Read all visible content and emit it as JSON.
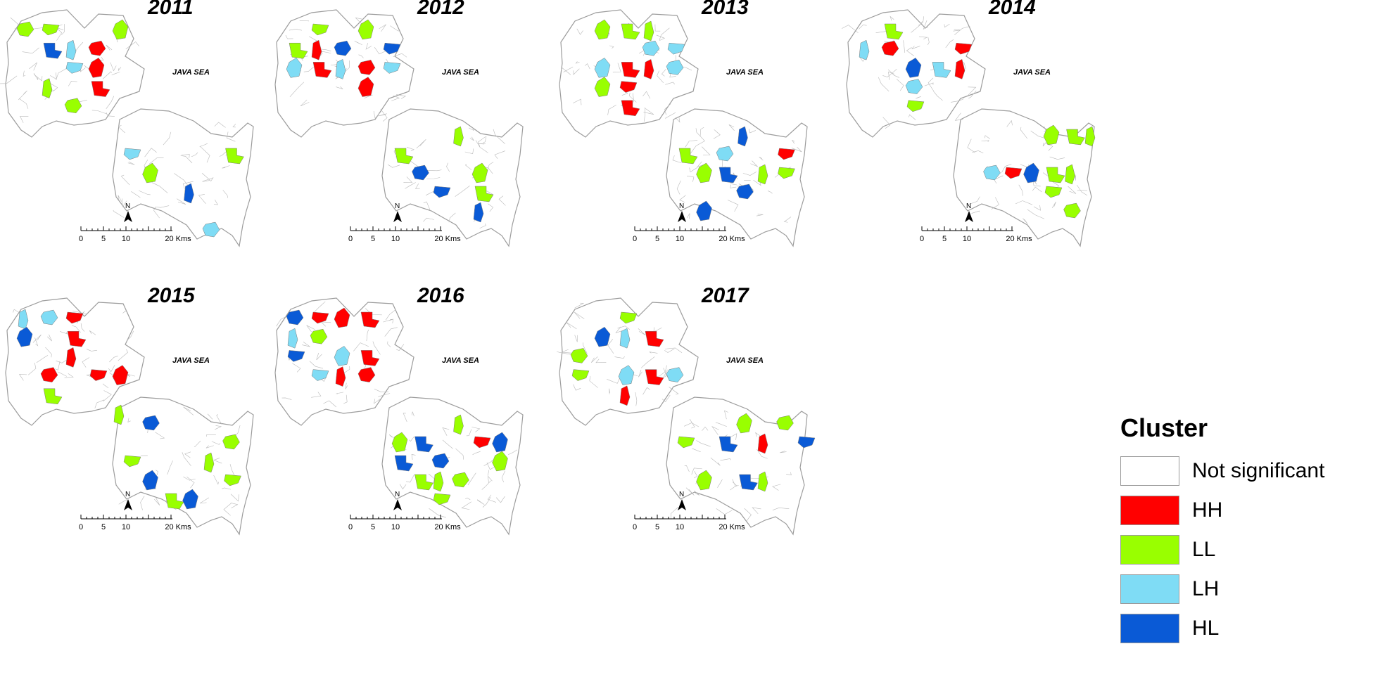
{
  "sea_label": "JAVA SEA",
  "north_label": "N",
  "scale": {
    "ticks": [
      "0",
      "5",
      "10",
      "20 Kms"
    ]
  },
  "colors": {
    "not_significant": "#ffffff",
    "HH": "#ff0000",
    "LL": "#99ff00",
    "LH": "#7fdcf5",
    "HL": "#0a5ad6",
    "boundary": "#b9b9b9"
  },
  "panels": [
    {
      "year": "2011",
      "clusters": [
        {
          "t": "LL",
          "s": [
            0,
            0
          ],
          "r": "NW"
        },
        {
          "t": "LL",
          "s": [
            1,
            0
          ],
          "r": "NW"
        },
        {
          "t": "LL",
          "s": [
            4,
            0
          ],
          "r": "NW"
        },
        {
          "t": "HL",
          "s": [
            1,
            1
          ],
          "r": "NW"
        },
        {
          "t": "LH",
          "s": [
            2,
            1
          ],
          "r": "NW"
        },
        {
          "t": "HH",
          "s": [
            3,
            1
          ],
          "r": "NW"
        },
        {
          "t": "LH",
          "s": [
            2,
            2
          ],
          "r": "NW"
        },
        {
          "t": "HH",
          "s": [
            3,
            2
          ],
          "r": "NW"
        },
        {
          "t": "HH",
          "s": [
            3,
            3
          ],
          "r": "NW"
        },
        {
          "t": "LL",
          "s": [
            1,
            3
          ],
          "r": "NW"
        },
        {
          "t": "LL",
          "s": [
            2,
            4
          ],
          "r": "NW"
        },
        {
          "t": "LH",
          "s": [
            0,
            1
          ],
          "r": "SE"
        },
        {
          "t": "LL",
          "s": [
            1,
            2
          ],
          "r": "SE"
        },
        {
          "t": "LL",
          "s": [
            5,
            1
          ],
          "r": "SE"
        },
        {
          "t": "HL",
          "s": [
            3,
            3
          ],
          "r": "SE"
        },
        {
          "t": "LH",
          "s": [
            4,
            5
          ],
          "r": "SE"
        }
      ]
    },
    {
      "year": "2012",
      "clusters": [
        {
          "t": "LL",
          "s": [
            1,
            0
          ],
          "r": "NW"
        },
        {
          "t": "LL",
          "s": [
            3,
            0
          ],
          "r": "NW"
        },
        {
          "t": "LL",
          "s": [
            0,
            1
          ],
          "r": "NW"
        },
        {
          "t": "HH",
          "s": [
            1,
            1
          ],
          "r": "NW"
        },
        {
          "t": "HL",
          "s": [
            2,
            1
          ],
          "r": "NW"
        },
        {
          "t": "HL",
          "s": [
            4,
            1
          ],
          "r": "NW"
        },
        {
          "t": "LH",
          "s": [
            0,
            2
          ],
          "r": "NW"
        },
        {
          "t": "HH",
          "s": [
            1,
            2
          ],
          "r": "NW"
        },
        {
          "t": "LH",
          "s": [
            2,
            2
          ],
          "r": "NW"
        },
        {
          "t": "HH",
          "s": [
            3,
            2
          ],
          "r": "NW"
        },
        {
          "t": "LH",
          "s": [
            4,
            2
          ],
          "r": "NW"
        },
        {
          "t": "HH",
          "s": [
            3,
            3
          ],
          "r": "NW"
        },
        {
          "t": "LL",
          "s": [
            0,
            1
          ],
          "r": "SE"
        },
        {
          "t": "LL",
          "s": [
            3,
            0
          ],
          "r": "SE"
        },
        {
          "t": "HL",
          "s": [
            1,
            2
          ],
          "r": "SE"
        },
        {
          "t": "HL",
          "s": [
            2,
            3
          ],
          "r": "SE"
        },
        {
          "t": "LL",
          "s": [
            4,
            2
          ],
          "r": "SE"
        },
        {
          "t": "LL",
          "s": [
            4,
            3
          ],
          "r": "SE"
        },
        {
          "t": "HL",
          "s": [
            4,
            4
          ],
          "r": "SE"
        }
      ]
    },
    {
      "year": "2013",
      "clusters": [
        {
          "t": "LL",
          "s": [
            1,
            0
          ],
          "r": "NW"
        },
        {
          "t": "LL",
          "s": [
            2,
            0
          ],
          "r": "NW"
        },
        {
          "t": "LL",
          "s": [
            3,
            0
          ],
          "r": "NW"
        },
        {
          "t": "LH",
          "s": [
            3,
            1
          ],
          "r": "NW"
        },
        {
          "t": "LH",
          "s": [
            4,
            1
          ],
          "r": "NW"
        },
        {
          "t": "LH",
          "s": [
            1,
            2
          ],
          "r": "NW"
        },
        {
          "t": "HH",
          "s": [
            2,
            2
          ],
          "r": "NW"
        },
        {
          "t": "HH",
          "s": [
            3,
            2
          ],
          "r": "NW"
        },
        {
          "t": "LH",
          "s": [
            4,
            2
          ],
          "r": "NW"
        },
        {
          "t": "HH",
          "s": [
            2,
            3
          ],
          "r": "NW"
        },
        {
          "t": "LL",
          "s": [
            1,
            3
          ],
          "r": "NW"
        },
        {
          "t": "HH",
          "s": [
            2,
            4
          ],
          "r": "NW"
        },
        {
          "t": "HL",
          "s": [
            3,
            0
          ],
          "r": "SE"
        },
        {
          "t": "LH",
          "s": [
            2,
            1
          ],
          "r": "SE"
        },
        {
          "t": "HH",
          "s": [
            5,
            1
          ],
          "r": "SE"
        },
        {
          "t": "LL",
          "s": [
            1,
            2
          ],
          "r": "SE"
        },
        {
          "t": "HL",
          "s": [
            2,
            2
          ],
          "r": "SE"
        },
        {
          "t": "LL",
          "s": [
            4,
            2
          ],
          "r": "SE"
        },
        {
          "t": "HL",
          "s": [
            3,
            3
          ],
          "r": "SE"
        },
        {
          "t": "LL",
          "s": [
            5,
            2
          ],
          "r": "SE"
        },
        {
          "t": "HL",
          "s": [
            1,
            4
          ],
          "r": "SE"
        },
        {
          "t": "LL",
          "s": [
            0,
            1
          ],
          "r": "SE"
        }
      ]
    },
    {
      "year": "2014",
      "clusters": [
        {
          "t": "LL",
          "s": [
            1,
            0
          ],
          "r": "NW"
        },
        {
          "t": "LH",
          "s": [
            0,
            1
          ],
          "r": "NW"
        },
        {
          "t": "HH",
          "s": [
            1,
            1
          ],
          "r": "NW"
        },
        {
          "t": "HH",
          "s": [
            4,
            1
          ],
          "r": "NW"
        },
        {
          "t": "HL",
          "s": [
            2,
            2
          ],
          "r": "NW"
        },
        {
          "t": "LH",
          "s": [
            3,
            2
          ],
          "r": "NW"
        },
        {
          "t": "HH",
          "s": [
            4,
            2
          ],
          "r": "NW"
        },
        {
          "t": "LH",
          "s": [
            2,
            3
          ],
          "r": "NW"
        },
        {
          "t": "LL",
          "s": [
            2,
            4
          ],
          "r": "NW"
        },
        {
          "t": "LL",
          "s": [
            4,
            0
          ],
          "r": "SE"
        },
        {
          "t": "LL",
          "s": [
            5,
            0
          ],
          "r": "SE"
        },
        {
          "t": "LL",
          "s": [
            6,
            0
          ],
          "r": "SE"
        },
        {
          "t": "LH",
          "s": [
            1,
            2
          ],
          "r": "SE"
        },
        {
          "t": "HH",
          "s": [
            2,
            2
          ],
          "r": "SE"
        },
        {
          "t": "HL",
          "s": [
            3,
            2
          ],
          "r": "SE"
        },
        {
          "t": "LL",
          "s": [
            4,
            2
          ],
          "r": "SE"
        },
        {
          "t": "LL",
          "s": [
            5,
            2
          ],
          "r": "SE"
        },
        {
          "t": "LL",
          "s": [
            5,
            4
          ],
          "r": "SE"
        },
        {
          "t": "LL",
          "s": [
            4,
            3
          ],
          "r": "SE"
        }
      ]
    },
    {
      "year": "2015",
      "clusters": [
        {
          "t": "LH",
          "s": [
            0,
            0
          ],
          "r": "NW"
        },
        {
          "t": "LH",
          "s": [
            1,
            0
          ],
          "r": "NW"
        },
        {
          "t": "HH",
          "s": [
            2,
            0
          ],
          "r": "NW"
        },
        {
          "t": "HL",
          "s": [
            0,
            1
          ],
          "r": "NW"
        },
        {
          "t": "HH",
          "s": [
            2,
            1
          ],
          "r": "NW"
        },
        {
          "t": "HH",
          "s": [
            2,
            2
          ],
          "r": "NW"
        },
        {
          "t": "HH",
          "s": [
            1,
            3
          ],
          "r": "NW"
        },
        {
          "t": "HH",
          "s": [
            3,
            3
          ],
          "r": "NW"
        },
        {
          "t": "HH",
          "s": [
            4,
            3
          ],
          "r": "NW"
        },
        {
          "t": "LL",
          "s": [
            1,
            4
          ],
          "r": "NW"
        },
        {
          "t": "LL",
          "s": [
            4,
            5
          ],
          "r": "NW"
        },
        {
          "t": "HL",
          "s": [
            1,
            0
          ],
          "r": "SE"
        },
        {
          "t": "LL",
          "s": [
            0,
            2
          ],
          "r": "SE"
        },
        {
          "t": "HL",
          "s": [
            1,
            3
          ],
          "r": "SE"
        },
        {
          "t": "LL",
          "s": [
            2,
            4
          ],
          "r": "SE"
        },
        {
          "t": "LL",
          "s": [
            4,
            2
          ],
          "r": "SE"
        },
        {
          "t": "LL",
          "s": [
            5,
            1
          ],
          "r": "SE"
        },
        {
          "t": "LL",
          "s": [
            5,
            3
          ],
          "r": "SE"
        },
        {
          "t": "HL",
          "s": [
            3,
            4
          ],
          "r": "SE"
        }
      ]
    },
    {
      "year": "2016",
      "clusters": [
        {
          "t": "HL",
          "s": [
            0,
            0
          ],
          "r": "NW"
        },
        {
          "t": "HH",
          "s": [
            1,
            0
          ],
          "r": "NW"
        },
        {
          "t": "HH",
          "s": [
            2,
            0
          ],
          "r": "NW"
        },
        {
          "t": "HH",
          "s": [
            3,
            0
          ],
          "r": "NW"
        },
        {
          "t": "LH",
          "s": [
            0,
            1
          ],
          "r": "NW"
        },
        {
          "t": "LL",
          "s": [
            1,
            1
          ],
          "r": "NW"
        },
        {
          "t": "HL",
          "s": [
            0,
            2
          ],
          "r": "NW"
        },
        {
          "t": "LH",
          "s": [
            2,
            2
          ],
          "r": "NW"
        },
        {
          "t": "HH",
          "s": [
            3,
            2
          ],
          "r": "NW"
        },
        {
          "t": "HH",
          "s": [
            2,
            3
          ],
          "r": "NW"
        },
        {
          "t": "HH",
          "s": [
            3,
            3
          ],
          "r": "NW"
        },
        {
          "t": "LH",
          "s": [
            1,
            3
          ],
          "r": "NW"
        },
        {
          "t": "LL",
          "s": [
            0,
            1
          ],
          "r": "SE"
        },
        {
          "t": "HL",
          "s": [
            1,
            1
          ],
          "r": "SE"
        },
        {
          "t": "LL",
          "s": [
            3,
            0
          ],
          "r": "SE"
        },
        {
          "t": "HL",
          "s": [
            2,
            2
          ],
          "r": "SE"
        },
        {
          "t": "HH",
          "s": [
            4,
            1
          ],
          "r": "SE"
        },
        {
          "t": "HL",
          "s": [
            5,
            1
          ],
          "r": "SE"
        },
        {
          "t": "LL",
          "s": [
            1,
            3
          ],
          "r": "SE"
        },
        {
          "t": "LL",
          "s": [
            2,
            3
          ],
          "r": "SE"
        },
        {
          "t": "LL",
          "s": [
            3,
            3
          ],
          "r": "SE"
        },
        {
          "t": "LL",
          "s": [
            2,
            4
          ],
          "r": "SE"
        },
        {
          "t": "LL",
          "s": [
            5,
            2
          ],
          "r": "SE"
        },
        {
          "t": "HL",
          "s": [
            0,
            2
          ],
          "r": "SE"
        }
      ]
    },
    {
      "year": "2017",
      "clusters": [
        {
          "t": "LL",
          "s": [
            2,
            0
          ],
          "r": "NW"
        },
        {
          "t": "HL",
          "s": [
            1,
            1
          ],
          "r": "NW"
        },
        {
          "t": "HH",
          "s": [
            3,
            1
          ],
          "r": "NW"
        },
        {
          "t": "LH",
          "s": [
            2,
            1
          ],
          "r": "NW"
        },
        {
          "t": "LL",
          "s": [
            0,
            2
          ],
          "r": "NW"
        },
        {
          "t": "LL",
          "s": [
            0,
            3
          ],
          "r": "NW"
        },
        {
          "t": "LH",
          "s": [
            2,
            3
          ],
          "r": "NW"
        },
        {
          "t": "HH",
          "s": [
            3,
            3
          ],
          "r": "NW"
        },
        {
          "t": "HH",
          "s": [
            2,
            4
          ],
          "r": "NW"
        },
        {
          "t": "LH",
          "s": [
            4,
            3
          ],
          "r": "NW"
        },
        {
          "t": "LL",
          "s": [
            0,
            1
          ],
          "r": "SE"
        },
        {
          "t": "LL",
          "s": [
            3,
            0
          ],
          "r": "SE"
        },
        {
          "t": "HL",
          "s": [
            2,
            1
          ],
          "r": "SE"
        },
        {
          "t": "HH",
          "s": [
            4,
            1
          ],
          "r": "SE"
        },
        {
          "t": "LL",
          "s": [
            5,
            0
          ],
          "r": "SE"
        },
        {
          "t": "HL",
          "s": [
            6,
            1
          ],
          "r": "SE"
        },
        {
          "t": "LL",
          "s": [
            1,
            3
          ],
          "r": "SE"
        },
        {
          "t": "HL",
          "s": [
            3,
            3
          ],
          "r": "SE"
        },
        {
          "t": "LL",
          "s": [
            4,
            3
          ],
          "r": "SE"
        }
      ]
    }
  ],
  "legend": {
    "title": "Cluster",
    "items": [
      {
        "key": "not_significant",
        "label": "Not significant"
      },
      {
        "key": "HH",
        "label": "HH"
      },
      {
        "key": "LL",
        "label": "LL"
      },
      {
        "key": "LH",
        "label": "LH"
      },
      {
        "key": "HL",
        "label": "HL"
      }
    ]
  }
}
